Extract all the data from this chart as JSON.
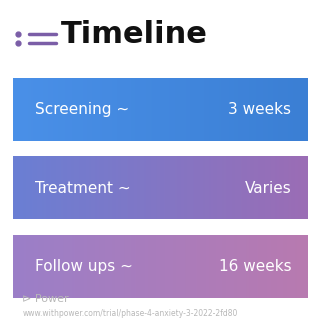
{
  "title": "Timeline",
  "title_fontsize": 22,
  "title_color": "#111111",
  "title_icon_color": "#7B5EA7",
  "background_color": "#ffffff",
  "rows": [
    {
      "label": "Screening ~",
      "value": "3 weeks",
      "color_left": "#4A90E8",
      "color_right": "#3B7FD4"
    },
    {
      "label": "Treatment ~",
      "value": "Varies",
      "color_left": "#6A7FD4",
      "color_right": "#9B6DB5"
    },
    {
      "label": "Follow ups ~",
      "value": "16 weeks",
      "color_left": "#9B7FC8",
      "color_right": "#B87AB0"
    }
  ],
  "row_text_color": "#ffffff",
  "row_label_fontsize": 11,
  "row_value_fontsize": 11,
  "footer_logo_color": "#b0b0b0",
  "footer_text": "www.withpower.com/trial/phase-4-anxiety-3-2022-2fd80",
  "footer_fontsize": 5.5
}
